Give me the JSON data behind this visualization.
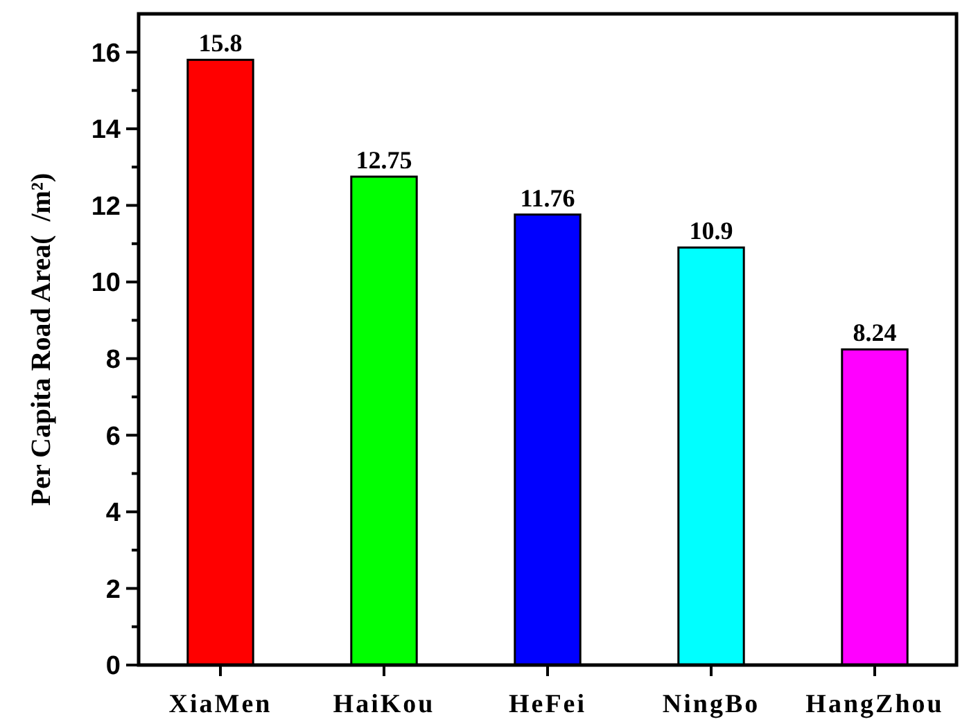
{
  "chart_data": {
    "type": "bar",
    "ylabel": "Per Capita Road Area(  /m²)",
    "categories": [
      "XiaMen",
      "HaiKou",
      "HeFei",
      "NingBo",
      "HangZhou"
    ],
    "values": [
      15.8,
      12.75,
      11.76,
      10.9,
      8.24
    ],
    "colors": [
      "#ff0000",
      "#00ff00",
      "#0000ff",
      "#00ffff",
      "#ff00ff"
    ],
    "ylim": [
      0,
      17
    ],
    "yticks": [
      0,
      {
        "value": 1,
        "label": null
      },
      2,
      {
        "value": 3,
        "label": null
      },
      4,
      {
        "value": 5,
        "label": null
      },
      6,
      {
        "value": 7,
        "label": null
      },
      8,
      {
        "value": 9,
        "label": null
      },
      10,
      {
        "value": 11,
        "label": null
      },
      12,
      {
        "value": 13,
        "label": null
      },
      14,
      {
        "value": 15,
        "label": null
      },
      16
    ],
    "data_labels": true,
    "grid": false
  }
}
